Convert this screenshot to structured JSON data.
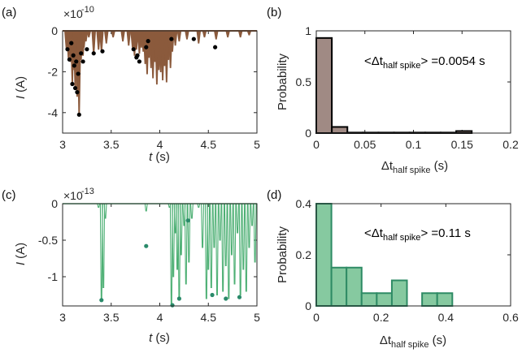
{
  "colors": {
    "brown": "#8b5a3c",
    "hist_brown": "#a08a84",
    "green": "#4caf73",
    "hist_green": "#86c9a0",
    "dot_green": "#2a8a6a",
    "dot_black": "#000000"
  },
  "chart_data": [
    {
      "panel_label": "(a)",
      "type": "line",
      "multiplier": "×10",
      "multiplier_exp": "-10",
      "xlabel": "t",
      "xlabel_unit": " (s)",
      "ylabel": "I",
      "ylabel_unit": " (A)",
      "xlim": [
        3,
        5
      ],
      "ylim": [
        -5,
        0
      ],
      "xticks": [
        3,
        3.5,
        4,
        4.5,
        5
      ],
      "xtick_labels": [
        "3",
        "3.5",
        "4",
        "4.5",
        "5"
      ],
      "yticks": [
        0,
        -2,
        -4
      ],
      "ytick_labels": [
        "0",
        "-2",
        "-4"
      ],
      "spikes": [
        {
          "t": 3.04,
          "depth": -0.9
        },
        {
          "t": 3.06,
          "depth": -1.3
        },
        {
          "t": 3.08,
          "depth": -1.5
        },
        {
          "t": 3.1,
          "depth": -2.5
        },
        {
          "t": 3.12,
          "depth": -1.9
        },
        {
          "t": 3.13,
          "depth": -2.8
        },
        {
          "t": 3.15,
          "depth": -3.2
        },
        {
          "t": 3.16,
          "depth": -1.6
        },
        {
          "t": 3.17,
          "depth": -4.1
        },
        {
          "t": 3.19,
          "depth": -1.4
        },
        {
          "t": 3.21,
          "depth": -1.2
        },
        {
          "t": 3.22,
          "depth": -0.8
        },
        {
          "t": 3.24,
          "depth": -0.5
        },
        {
          "t": 3.27,
          "depth": -0.3
        },
        {
          "t": 3.32,
          "depth": -1.1
        },
        {
          "t": 3.37,
          "depth": -0.9
        },
        {
          "t": 3.4,
          "depth": -1.0
        },
        {
          "t": 3.45,
          "depth": -0.6
        },
        {
          "t": 3.52,
          "depth": -0.3
        },
        {
          "t": 3.62,
          "depth": -0.5
        },
        {
          "t": 3.68,
          "depth": -0.7
        },
        {
          "t": 3.72,
          "depth": -0.8
        },
        {
          "t": 3.74,
          "depth": -1.2
        },
        {
          "t": 3.76,
          "depth": -0.9
        },
        {
          "t": 3.79,
          "depth": -1.1
        },
        {
          "t": 3.81,
          "depth": -0.8
        },
        {
          "t": 3.83,
          "depth": -1.0
        },
        {
          "t": 3.85,
          "depth": -1.6
        },
        {
          "t": 3.87,
          "depth": -2.1
        },
        {
          "t": 3.89,
          "depth": -1.3
        },
        {
          "t": 3.91,
          "depth": -1.8
        },
        {
          "t": 3.93,
          "depth": -2.3
        },
        {
          "t": 3.95,
          "depth": -1.5
        },
        {
          "t": 3.97,
          "depth": -2.6
        },
        {
          "t": 3.99,
          "depth": -1.9
        },
        {
          "t": 4.01,
          "depth": -2.0
        },
        {
          "t": 4.03,
          "depth": -2.4
        },
        {
          "t": 4.05,
          "depth": -1.7
        },
        {
          "t": 4.07,
          "depth": -2.5
        },
        {
          "t": 4.09,
          "depth": -1.4
        },
        {
          "t": 4.11,
          "depth": -1.8
        },
        {
          "t": 4.13,
          "depth": -1.0
        },
        {
          "t": 4.16,
          "depth": -0.7
        },
        {
          "t": 4.2,
          "depth": -0.5
        },
        {
          "t": 4.28,
          "depth": -0.4
        },
        {
          "t": 4.4,
          "depth": -0.6
        },
        {
          "t": 4.46,
          "depth": -0.3
        },
        {
          "t": 4.58,
          "depth": -0.4
        },
        {
          "t": 4.7,
          "depth": -0.3
        },
        {
          "t": 4.83,
          "depth": -0.3
        },
        {
          "t": 4.92,
          "depth": -0.2
        }
      ],
      "markers": [
        {
          "t": 3.05,
          "i": -0.9
        },
        {
          "t": 3.07,
          "i": -1.4
        },
        {
          "t": 3.09,
          "i": -0.6
        },
        {
          "t": 3.1,
          "i": -2.6
        },
        {
          "t": 3.11,
          "i": -1.2
        },
        {
          "t": 3.12,
          "i": -1.7
        },
        {
          "t": 3.13,
          "i": -2.8
        },
        {
          "t": 3.14,
          "i": -1.5
        },
        {
          "t": 3.15,
          "i": -3.0
        },
        {
          "t": 3.16,
          "i": -2.1
        },
        {
          "t": 3.17,
          "i": -4.1
        },
        {
          "t": 3.19,
          "i": -1.1
        },
        {
          "t": 3.21,
          "i": -1.5
        },
        {
          "t": 3.25,
          "i": -0.9
        },
        {
          "t": 3.32,
          "i": -1.1
        },
        {
          "t": 3.41,
          "i": -1.0
        },
        {
          "t": 3.73,
          "i": -0.9
        },
        {
          "t": 3.76,
          "i": -1.3
        },
        {
          "t": 3.77,
          "i": -1.2
        },
        {
          "t": 3.79,
          "i": -1.5
        },
        {
          "t": 3.86,
          "i": -0.8
        },
        {
          "t": 3.88,
          "i": -0.5
        },
        {
          "t": 4.12,
          "i": -0.4
        },
        {
          "t": 4.35,
          "i": -0.4
        },
        {
          "t": 4.57,
          "i": -0.8
        }
      ]
    },
    {
      "panel_label": "(b)",
      "type": "bar",
      "xlabel_main": "Δt",
      "xlabel_sub": "half spike",
      "xlabel_unit": " (s)",
      "ylabel": "Probability",
      "xlim": [
        0,
        0.2
      ],
      "ylim": [
        0,
        1
      ],
      "xticks": [
        0,
        0.05,
        0.1,
        0.15,
        0.2
      ],
      "xtick_labels": [
        "0",
        "0.05",
        "0.1",
        "0.15",
        "0.2"
      ],
      "yticks": [
        0,
        0.5,
        1
      ],
      "ytick_labels": [
        "0",
        "0.5",
        "1"
      ],
      "bin_width": 0.016,
      "bin_starts": [
        0,
        0.016,
        0.032,
        0.048,
        0.064,
        0.08,
        0.096,
        0.112,
        0.128,
        0.144
      ],
      "values": [
        0.93,
        0.06,
        0.005,
        0.005,
        0.005,
        0.005,
        0.005,
        0.005,
        0.005,
        0.02
      ],
      "annotation_pre": "<Δt",
      "annotation_sub": "half spike",
      "annotation_post": "> =0.0054 s"
    },
    {
      "panel_label": "(c)",
      "type": "line",
      "multiplier": "×10",
      "multiplier_exp": "-13",
      "xlabel": "t",
      "xlabel_unit": " (s)",
      "ylabel": "I",
      "ylabel_unit": " (A)",
      "xlim": [
        3,
        5
      ],
      "ylim": [
        -1.4,
        0
      ],
      "xticks": [
        3,
        3.5,
        4,
        4.5,
        5
      ],
      "xtick_labels": [
        "3",
        "3.5",
        "4",
        "4.5",
        "5"
      ],
      "yticks": [
        0,
        -0.5,
        -1
      ],
      "ytick_labels": [
        "0",
        "-0.5",
        "-1"
      ],
      "spikes": [
        {
          "t": 3.37,
          "depth": -0.05
        },
        {
          "t": 3.4,
          "depth": -1.3
        },
        {
          "t": 3.42,
          "depth": -1.15
        },
        {
          "t": 3.44,
          "depth": -0.2
        },
        {
          "t": 3.86,
          "depth": -0.1
        },
        {
          "t": 4.1,
          "depth": -0.05
        },
        {
          "t": 4.12,
          "depth": -1.38
        },
        {
          "t": 4.14,
          "depth": -1.0
        },
        {
          "t": 4.16,
          "depth": -0.4
        },
        {
          "t": 4.18,
          "depth": -0.9
        },
        {
          "t": 4.2,
          "depth": -1.3
        },
        {
          "t": 4.22,
          "depth": -0.7
        },
        {
          "t": 4.25,
          "depth": -0.3
        },
        {
          "t": 4.27,
          "depth": -1.1
        },
        {
          "t": 4.3,
          "depth": -0.8
        },
        {
          "t": 4.33,
          "depth": -0.2
        },
        {
          "t": 4.4,
          "depth": -0.05
        },
        {
          "t": 4.44,
          "depth": -0.6
        },
        {
          "t": 4.48,
          "depth": -1.3
        },
        {
          "t": 4.5,
          "depth": -0.9
        },
        {
          "t": 4.53,
          "depth": -1.15
        },
        {
          "t": 4.56,
          "depth": -0.6
        },
        {
          "t": 4.59,
          "depth": -1.25
        },
        {
          "t": 4.62,
          "depth": -0.5
        },
        {
          "t": 4.65,
          "depth": -1.2
        },
        {
          "t": 4.68,
          "depth": -0.85
        },
        {
          "t": 4.71,
          "depth": -1.3
        },
        {
          "t": 4.74,
          "depth": -0.7
        },
        {
          "t": 4.77,
          "depth": -1.1
        },
        {
          "t": 4.8,
          "depth": -0.4
        },
        {
          "t": 4.83,
          "depth": -1.25
        },
        {
          "t": 4.86,
          "depth": -0.9
        },
        {
          "t": 4.89,
          "depth": -1.2
        },
        {
          "t": 4.92,
          "depth": -0.6
        },
        {
          "t": 4.95,
          "depth": -0.3
        },
        {
          "t": 4.98,
          "depth": -0.8
        }
      ],
      "markers": [
        {
          "t": 3.4,
          "i": -1.32
        },
        {
          "t": 3.86,
          "i": -0.58
        },
        {
          "t": 4.13,
          "i": -1.39
        },
        {
          "t": 4.29,
          "i": -0.23
        },
        {
          "t": 4.54,
          "i": -1.25
        },
        {
          "t": 4.68,
          "i": -1.3
        },
        {
          "t": 4.82,
          "i": -1.28
        },
        {
          "t": 4.2,
          "i": -1.3
        }
      ]
    },
    {
      "panel_label": "(d)",
      "type": "bar",
      "xlabel_main": "Δt",
      "xlabel_sub": "half spike",
      "xlabel_unit": " (s)",
      "ylabel": "Probability",
      "xlim": [
        0,
        0.6
      ],
      "ylim": [
        0,
        0.4
      ],
      "xticks": [
        0,
        0.2,
        0.4,
        0.6
      ],
      "xtick_labels": [
        "0",
        "0.2",
        "0.4",
        "0.6"
      ],
      "yticks": [
        0,
        0.2,
        0.4
      ],
      "ytick_labels": [
        "0",
        "0.2",
        "0.4"
      ],
      "bin_width": 0.0467,
      "bin_starts": [
        0,
        0.0467,
        0.0933,
        0.14,
        0.1867,
        0.2333,
        0.28,
        0.3267,
        0.3733
      ],
      "values": [
        0.4,
        0.15,
        0.15,
        0.05,
        0.05,
        0.1,
        0.0,
        0.05,
        0.05
      ],
      "annotation_pre": "<Δt",
      "annotation_sub": "half spike",
      "annotation_post": "> =0.11 s"
    }
  ]
}
